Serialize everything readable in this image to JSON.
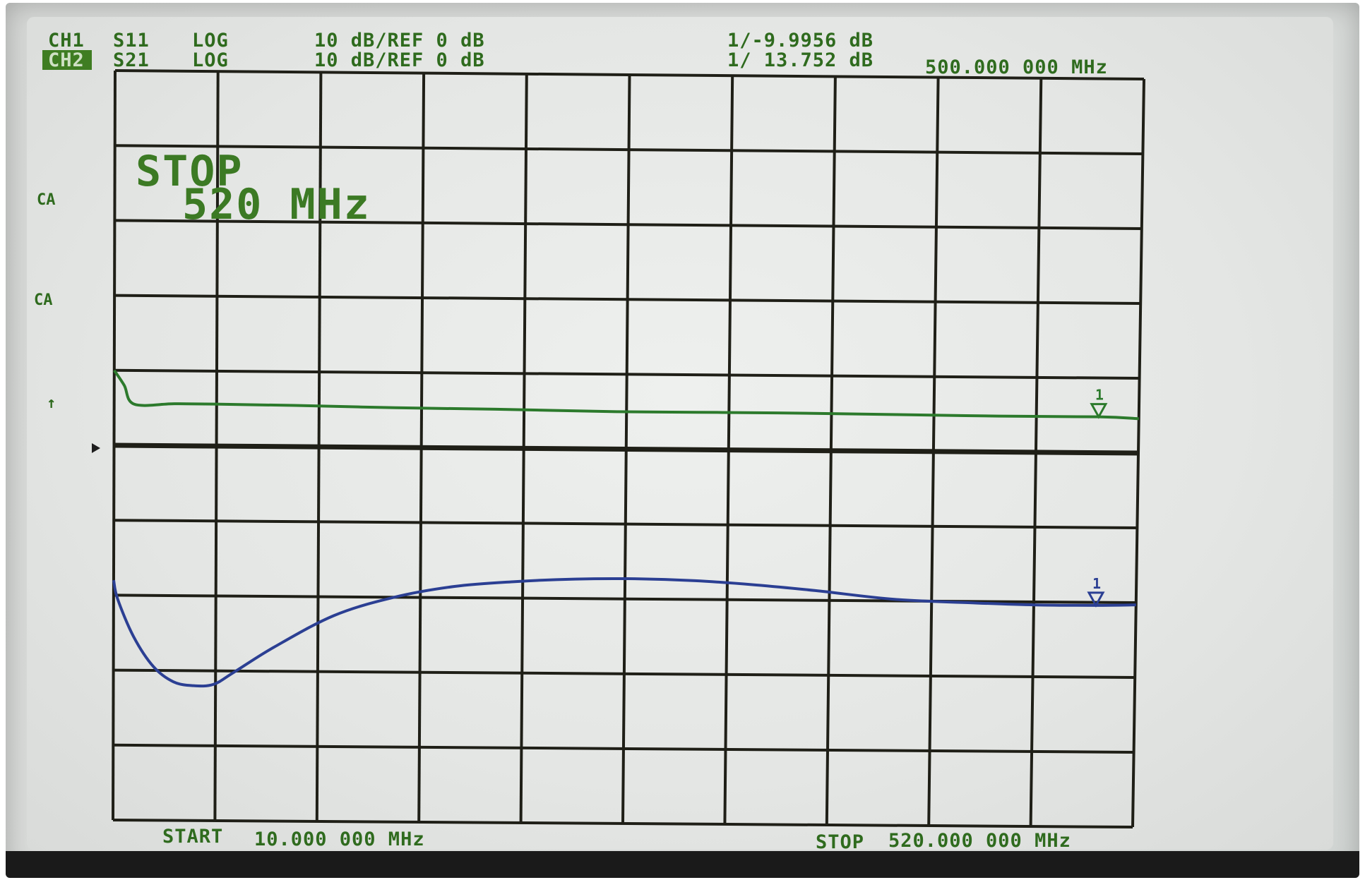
{
  "chart_data": {
    "type": "line",
    "instrument": "network analyzer",
    "header": {
      "ch1": {
        "label": "CH1",
        "param": "S11",
        "format": "LOG",
        "scale": "10 dB/REF 0 dB",
        "marker": "1/-9.9956 dB"
      },
      "ch2": {
        "label": "CH2",
        "param": "S21",
        "format": "LOG",
        "scale": "10 dB/REF 0 dB",
        "marker": "1/ 13.752 dB"
      },
      "marker_freq": "500.000 000 MHz"
    },
    "annotation": {
      "line1": "STOP",
      "line2": "520 MHz"
    },
    "left_markers": [
      "CA",
      "CA",
      "↑"
    ],
    "start_label": "START",
    "start_value": "10.000 000 MHz",
    "stop_label": "STOP",
    "stop_value": "520.000 000 MHz",
    "x_range": [
      10,
      520
    ],
    "x_unit": "MHz",
    "y_divisions": 10,
    "x_divisions": 10,
    "grid": true,
    "series": [
      {
        "name": "S21",
        "color": "#2c7a2c",
        "x": [
          10,
          15,
          20,
          40,
          60,
          100,
          150,
          200,
          260,
          300,
          340,
          400,
          450,
          500,
          520
        ],
        "y_div": [
          6.0,
          5.8,
          5.55,
          5.56,
          5.56,
          5.55,
          5.53,
          5.52,
          5.5,
          5.5,
          5.5,
          5.49,
          5.48,
          5.48,
          5.46
        ]
      },
      {
        "name": "S11",
        "color": "#2b3f93",
        "x": [
          10,
          12,
          20,
          30,
          40,
          50,
          60,
          70,
          90,
          120,
          150,
          180,
          210,
          240,
          270,
          300,
          330,
          360,
          400,
          440,
          470,
          500,
          520
        ],
        "y_div": [
          3.2,
          2.95,
          2.45,
          2.05,
          1.85,
          1.8,
          1.82,
          1.98,
          2.32,
          2.75,
          3.0,
          3.15,
          3.22,
          3.26,
          3.27,
          3.25,
          3.2,
          3.13,
          3.02,
          2.98,
          2.96,
          2.96,
          2.97
        ]
      }
    ],
    "marker": {
      "freq_mhz": 500,
      "s21_div": 5.48,
      "s11_div": 2.96
    }
  }
}
